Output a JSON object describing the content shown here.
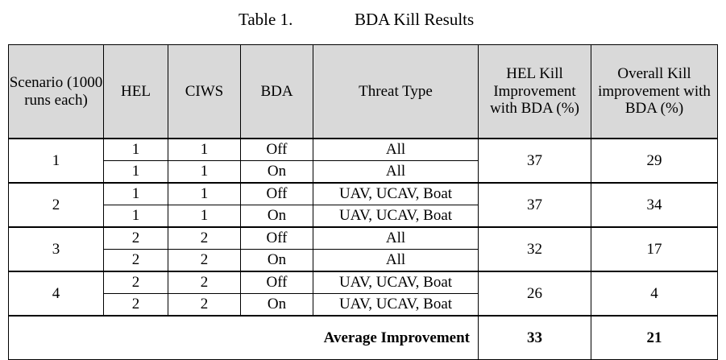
{
  "caption": {
    "number": "Table 1.",
    "title": "BDA Kill Results"
  },
  "headers": {
    "scenario": "Scenario (1000 runs each)",
    "hel": "HEL",
    "ciws": "CIWS",
    "bda": "BDA",
    "threat": "Threat Type",
    "hel_improvement": "HEL Kill Improvement with BDA (%)",
    "overall_improvement": "Overall Kill improvement with BDA (%)"
  },
  "scenarios": [
    {
      "id": "1",
      "hel_improvement": "37",
      "overall_improvement": "29",
      "rows": [
        {
          "hel": "1",
          "ciws": "1",
          "bda": "Off",
          "threat": "All"
        },
        {
          "hel": "1",
          "ciws": "1",
          "bda": "On",
          "threat": "All"
        }
      ]
    },
    {
      "id": "2",
      "hel_improvement": "37",
      "overall_improvement": "34",
      "rows": [
        {
          "hel": "1",
          "ciws": "1",
          "bda": "Off",
          "threat": "UAV, UCAV, Boat"
        },
        {
          "hel": "1",
          "ciws": "1",
          "bda": "On",
          "threat": "UAV, UCAV, Boat"
        }
      ]
    },
    {
      "id": "3",
      "hel_improvement": "32",
      "overall_improvement": "17",
      "rows": [
        {
          "hel": "2",
          "ciws": "2",
          "bda": "Off",
          "threat": "All"
        },
        {
          "hel": "2",
          "ciws": "2",
          "bda": "On",
          "threat": "All"
        }
      ]
    },
    {
      "id": "4",
      "hel_improvement": "26",
      "overall_improvement": "4",
      "rows": [
        {
          "hel": "2",
          "ciws": "2",
          "bda": "Off",
          "threat": "UAV, UCAV, Boat"
        },
        {
          "hel": "2",
          "ciws": "2",
          "bda": "On",
          "threat": "UAV, UCAV, Boat"
        }
      ]
    }
  ],
  "average": {
    "label": "Average Improvement",
    "hel_improvement": "33",
    "overall_improvement": "21"
  }
}
